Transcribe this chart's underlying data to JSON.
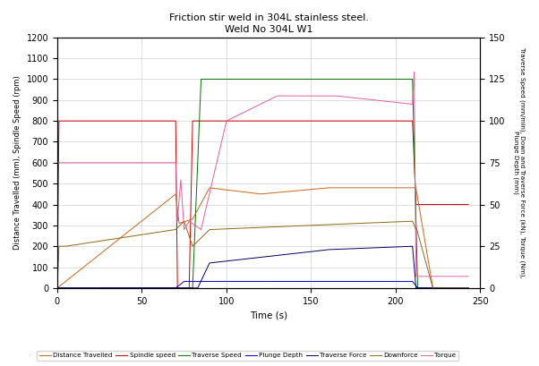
{
  "title_line1": "Friction stir weld in 304L stainless steel.",
  "title_line2": "Weld No 304L W1",
  "xlabel": "Time (s)",
  "ylabel_left": "Distance Travelled (mm), Spindle Speed (rpm)",
  "ylabel_right": "Traverse Speed (mm/min), Down and Traverse Force (kN), Torque (Nm),\nPlunge Depth (mm)",
  "xlim": [
    0,
    250
  ],
  "ylim_left": [
    0,
    1200
  ],
  "ylim_right": [
    0,
    150
  ],
  "xticks": [
    0,
    50,
    100,
    150,
    200,
    250
  ],
  "yticks_left": [
    0,
    100,
    200,
    300,
    400,
    500,
    600,
    700,
    800,
    900,
    1000,
    1100,
    1200
  ],
  "yticks_right": [
    0,
    25,
    50,
    75,
    100,
    125,
    150
  ],
  "legend_labels": [
    "Distance Travelled",
    "Spindle speed",
    "Traverse Speed",
    "Plunge Depth",
    "Traverse Force",
    "Downforce",
    "Torque"
  ],
  "colors": {
    "distance": "#c8641e",
    "spindle": "#c80000",
    "traverse_speed": "#007000",
    "plunge_depth": "#0000c8",
    "traverse_force": "#000060",
    "downforce": "#8b6914",
    "torque": "#e060a0"
  },
  "bg_color": "#ffffff",
  "grid_color": "#d0d0d0"
}
